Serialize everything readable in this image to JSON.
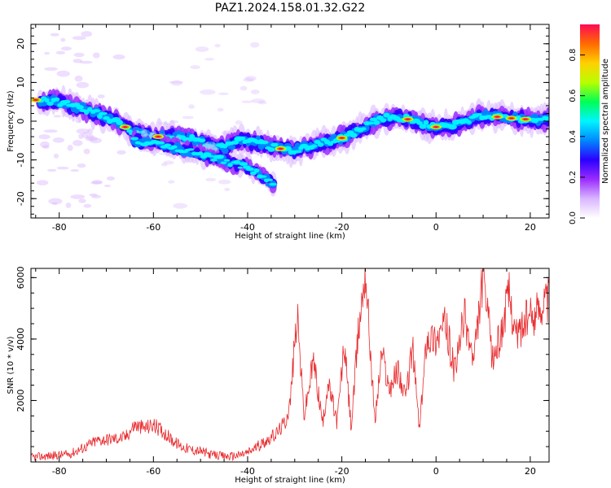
{
  "title": "PAZ1.2024.158.01.32.G22",
  "colors": {
    "snr_line": "#e8292c",
    "axes": "#000000",
    "background": "#ffffff",
    "colormap": [
      "#ffffff",
      "#d9b6ff",
      "#9a2cff",
      "#2b00ff",
      "#0088ff",
      "#00f5ff",
      "#00ff55",
      "#b8ff00",
      "#ffd000",
      "#ff6a00",
      "#ff0a55"
    ]
  },
  "chart_data": [
    {
      "type": "heatmap",
      "title": "PAZ1.2024.158.01.32.G22",
      "xlabel": "Height of straight line (km)",
      "ylabel": "Frequency (Hz)",
      "xlim": [
        -86,
        24
      ],
      "ylim": [
        -25,
        25
      ],
      "xticks": [
        "-80",
        "-60",
        "-40",
        "-20",
        "0",
        "20"
      ],
      "yticks": [
        "-20",
        "-10",
        "0",
        "10",
        "20"
      ],
      "colorbar": {
        "label": "Normalized spectral amplitude",
        "range": [
          0.0,
          0.95
        ],
        "ticks": [
          "0.0",
          "0.2",
          "0.4",
          "0.6",
          "0.8"
        ]
      },
      "ridge": {
        "x": [
          -84,
          -80,
          -76,
          -72,
          -68,
          -64,
          -60,
          -56,
          -52,
          -48,
          -45,
          -42,
          -38,
          -34,
          -30,
          -26,
          -22,
          -19,
          -16,
          -13,
          -10,
          -6,
          -2,
          0,
          3,
          6,
          10,
          14,
          18,
          22,
          24
        ],
        "y": [
          5.5,
          5,
          3.5,
          2,
          0,
          -3,
          -4,
          -4,
          -4.5,
          -6,
          -7,
          -5,
          -5.5,
          -7,
          -7.5,
          -6,
          -5,
          -4,
          -2,
          0,
          1,
          0.5,
          -1,
          -1.5,
          -1.5,
          0,
          1.5,
          1,
          0.5,
          0.5,
          0.5
        ]
      },
      "branch": {
        "x": [
          -64,
          -58,
          -52,
          -48,
          -44,
          -40,
          -36,
          -34
        ],
        "y": [
          -5,
          -6,
          -8,
          -9,
          -10.5,
          -12,
          -15,
          -17
        ]
      }
    },
    {
      "type": "line",
      "xlabel": "Height of straight line (km)",
      "ylabel": "SNR (10 * v/v)",
      "xlim": [
        -86,
        24
      ],
      "ylim": [
        0,
        6300
      ],
      "xticks": [
        "-80",
        "-60",
        "-40",
        "-20",
        "0",
        "20"
      ],
      "yticks": [
        "2000",
        "4000",
        "6000"
      ],
      "series": [
        {
          "x": [
            -86,
            -82,
            -78,
            -75,
            -72,
            -69,
            -66,
            -64,
            -62,
            -60,
            -58,
            -56,
            -54,
            -52,
            -50,
            -48,
            -46,
            -44,
            -42,
            -40,
            -38,
            -36,
            -34,
            -32,
            -31,
            -29.5,
            -28,
            -26,
            -24,
            -23,
            -21,
            -19.5,
            -18,
            -16.5,
            -15,
            -13,
            -11.5,
            -10,
            -8,
            -6.5,
            -5,
            -3.5,
            -2,
            0,
            2,
            4,
            6,
            8,
            10,
            12,
            14,
            15.5,
            17,
            19,
            21,
            22.5,
            24
          ],
          "y": [
            150,
            200,
            250,
            450,
            700,
            750,
            800,
            1200,
            1100,
            1200,
            1000,
            700,
            500,
            400,
            350,
            250,
            200,
            180,
            220,
            300,
            500,
            700,
            900,
            1300,
            1900,
            4800,
            1500,
            3300,
            1200,
            2600,
            1300,
            3800,
            1100,
            4200,
            6300,
            1300,
            3600,
            2400,
            3000,
            2000,
            3800,
            1000,
            4100,
            4000,
            4500,
            2900,
            4800,
            3200,
            6100,
            3300,
            4300,
            5500,
            4100,
            4600,
            4800,
            5200,
            5300
          ]
        }
      ]
    }
  ]
}
